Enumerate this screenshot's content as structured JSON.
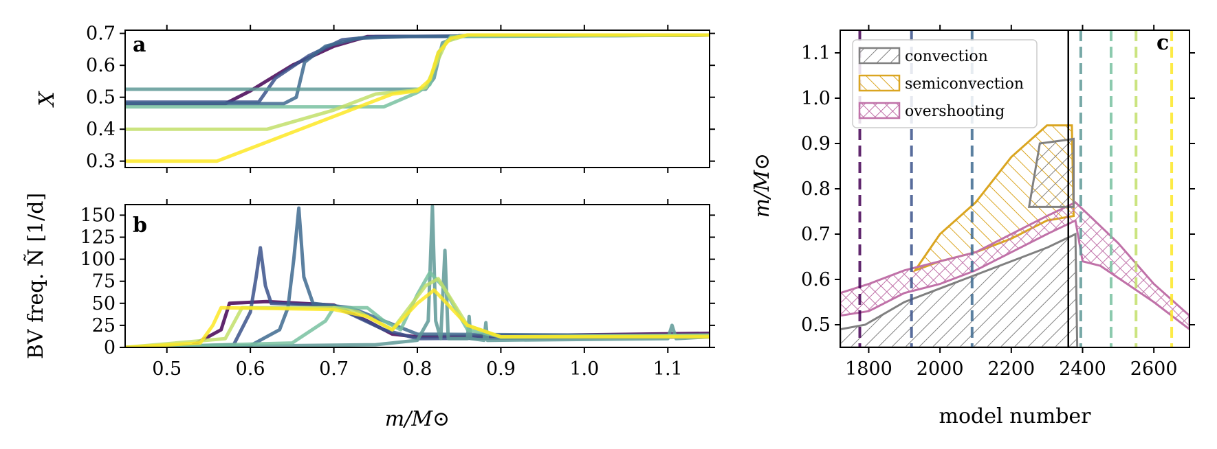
{
  "chart_data": [
    {
      "panel": "a",
      "type": "line",
      "ylabel": "X",
      "xlim": [
        0.45,
        1.15
      ],
      "ylim": [
        0.28,
        0.71
      ],
      "yticks": [
        "0.7",
        "0.6",
        "0.5",
        "0.4",
        "0.3"
      ],
      "series": [
        {
          "color": "#440154",
          "points": [
            [
              0.45,
              0.48
            ],
            [
              0.57,
              0.48
            ],
            [
              0.6,
              0.52
            ],
            [
              0.65,
              0.6
            ],
            [
              0.7,
              0.66
            ],
            [
              0.74,
              0.69
            ],
            [
              1.15,
              0.695
            ]
          ]
        },
        {
          "color": "#3b528b",
          "points": [
            [
              0.45,
              0.485
            ],
            [
              0.61,
              0.485
            ],
            [
              0.63,
              0.56
            ],
            [
              0.67,
              0.63
            ],
            [
              0.71,
              0.68
            ],
            [
              0.75,
              0.69
            ],
            [
              1.15,
              0.695
            ]
          ]
        },
        {
          "color": "#3e6a8f",
          "points": [
            [
              0.45,
              0.48
            ],
            [
              0.64,
              0.48
            ],
            [
              0.655,
              0.5
            ],
            [
              0.665,
              0.61
            ],
            [
              0.69,
              0.66
            ],
            [
              0.73,
              0.685
            ],
            [
              0.79,
              0.69
            ],
            [
              1.15,
              0.695
            ]
          ]
        },
        {
          "color": "#5e9996",
          "points": [
            [
              0.45,
              0.525
            ],
            [
              0.81,
              0.525
            ],
            [
              0.82,
              0.56
            ],
            [
              0.83,
              0.67
            ],
            [
              0.85,
              0.693
            ],
            [
              1.15,
              0.695
            ]
          ]
        },
        {
          "color": "#78c1a0",
          "points": [
            [
              0.45,
              0.47
            ],
            [
              0.76,
              0.47
            ],
            [
              0.8,
              0.515
            ],
            [
              0.815,
              0.54
            ],
            [
              0.825,
              0.64
            ],
            [
              0.84,
              0.69
            ],
            [
              1.15,
              0.695
            ]
          ]
        },
        {
          "color": "#c2df6a",
          "points": [
            [
              0.45,
              0.4
            ],
            [
              0.62,
              0.4
            ],
            [
              0.7,
              0.46
            ],
            [
              0.75,
              0.51
            ],
            [
              0.79,
              0.52
            ],
            [
              0.81,
              0.53
            ],
            [
              0.82,
              0.59
            ],
            [
              0.835,
              0.675
            ],
            [
              0.86,
              0.695
            ],
            [
              1.15,
              0.695
            ]
          ]
        },
        {
          "color": "#fde725",
          "points": [
            [
              0.45,
              0.3
            ],
            [
              0.56,
              0.3
            ],
            [
              0.66,
              0.4
            ],
            [
              0.73,
              0.47
            ],
            [
              0.77,
              0.51
            ],
            [
              0.8,
              0.52
            ],
            [
              0.815,
              0.555
            ],
            [
              0.825,
              0.64
            ],
            [
              0.84,
              0.685
            ],
            [
              0.86,
              0.695
            ],
            [
              1.15,
              0.695
            ]
          ]
        }
      ]
    },
    {
      "panel": "b",
      "type": "line",
      "ylabel": "BV freq. Ñ [1/d]",
      "xlabel": "m/M⊙",
      "xlim": [
        0.45,
        1.15
      ],
      "ylim": [
        0,
        162
      ],
      "xticks": [
        "0.5",
        "0.6",
        "0.7",
        "0.8",
        "0.9",
        "1.0",
        "1.1"
      ],
      "yticks": [
        "150",
        "125",
        "100",
        "75",
        "50",
        "25",
        "0"
      ],
      "series": [
        {
          "color": "#440154",
          "points": [
            [
              0.45,
              0
            ],
            [
              0.53,
              2
            ],
            [
              0.565,
              20
            ],
            [
              0.575,
              50
            ],
            [
              0.62,
              52
            ],
            [
              0.7,
              48
            ],
            [
              0.74,
              30
            ],
            [
              0.77,
              15
            ],
            [
              0.8,
              12
            ],
            [
              1.15,
              16
            ]
          ]
        },
        {
          "color": "#3b528b",
          "points": [
            [
              0.45,
              0
            ],
            [
              0.58,
              3
            ],
            [
              0.6,
              40
            ],
            [
              0.607,
              80
            ],
            [
              0.612,
              113
            ],
            [
              0.618,
              70
            ],
            [
              0.625,
              50
            ],
            [
              0.7,
              47
            ],
            [
              0.76,
              20
            ],
            [
              0.8,
              10
            ],
            [
              1.15,
              12
            ]
          ]
        },
        {
          "color": "#3e6a8f",
          "points": [
            [
              0.45,
              0
            ],
            [
              0.6,
              2
            ],
            [
              0.635,
              20
            ],
            [
              0.645,
              45
            ],
            [
              0.652,
              100
            ],
            [
              0.658,
              158
            ],
            [
              0.664,
              80
            ],
            [
              0.675,
              50
            ],
            [
              0.72,
              45
            ],
            [
              0.76,
              30
            ],
            [
              0.8,
              15
            ],
            [
              1.15,
              13
            ]
          ]
        },
        {
          "color": "#5e9996",
          "points": [
            [
              0.45,
              0
            ],
            [
              0.75,
              3
            ],
            [
              0.8,
              8
            ],
            [
              0.813,
              30
            ],
            [
              0.818,
              160
            ],
            [
              0.822,
              30
            ],
            [
              0.828,
              10
            ],
            [
              0.833,
              110
            ],
            [
              0.837,
              10
            ],
            [
              0.86,
              10
            ],
            [
              0.862,
              35
            ],
            [
              0.864,
              10
            ],
            [
              0.88,
              8
            ],
            [
              0.882,
              28
            ],
            [
              0.884,
              8
            ],
            [
              1.1,
              10
            ],
            [
              1.105,
              25
            ],
            [
              1.11,
              10
            ],
            [
              1.15,
              12
            ]
          ]
        },
        {
          "color": "#78c1a0",
          "points": [
            [
              0.45,
              0
            ],
            [
              0.65,
              5
            ],
            [
              0.69,
              30
            ],
            [
              0.7,
              45
            ],
            [
              0.74,
              45
            ],
            [
              0.76,
              30
            ],
            [
              0.78,
              20
            ],
            [
              0.8,
              60
            ],
            [
              0.815,
              85
            ],
            [
              0.83,
              70
            ],
            [
              0.86,
              20
            ],
            [
              0.9,
              12
            ],
            [
              1.15,
              14
            ]
          ]
        },
        {
          "color": "#c2df6a",
          "points": [
            [
              0.45,
              0
            ],
            [
              0.57,
              10
            ],
            [
              0.59,
              45
            ],
            [
              0.7,
              45
            ],
            [
              0.73,
              40
            ],
            [
              0.77,
              20
            ],
            [
              0.81,
              70
            ],
            [
              0.825,
              78
            ],
            [
              0.86,
              25
            ],
            [
              0.9,
              12
            ],
            [
              1.15,
              13
            ]
          ]
        },
        {
          "color": "#fde725",
          "points": [
            [
              0.45,
              0
            ],
            [
              0.54,
              5
            ],
            [
              0.555,
              25
            ],
            [
              0.565,
              45
            ],
            [
              0.7,
              43
            ],
            [
              0.74,
              35
            ],
            [
              0.77,
              20
            ],
            [
              0.8,
              50
            ],
            [
              0.82,
              65
            ],
            [
              0.86,
              25
            ],
            [
              0.9,
              12
            ],
            [
              1.15,
              12
            ]
          ]
        }
      ]
    },
    {
      "panel": "c",
      "type": "area",
      "xlabel": "model number",
      "ylabel": "m/M⊙",
      "xlim": [
        1720,
        2700
      ],
      "ylim": [
        0.45,
        1.15
      ],
      "xticks": [
        "1800",
        "2000",
        "2200",
        "2400",
        "2600"
      ],
      "yticks": [
        "1.1",
        "1.0",
        "0.9",
        "0.8",
        "0.7",
        "0.6",
        "0.5"
      ],
      "legend": {
        "placement": "top-left",
        "entries": [
          {
            "label": "convection",
            "color": "#808080"
          },
          {
            "label": "semiconvection",
            "color": "#daa520"
          },
          {
            "label": "overshooting",
            "color": "#c071a8"
          }
        ]
      },
      "regions": {
        "convection": [
          [
            1720,
            0.45
          ],
          [
            1720,
            0.49
          ],
          [
            1790,
            0.5
          ],
          [
            1900,
            0.55
          ],
          [
            2000,
            0.58
          ],
          [
            2100,
            0.61
          ],
          [
            2200,
            0.64
          ],
          [
            2300,
            0.67
          ],
          [
            2380,
            0.7
          ],
          [
            2385,
            0.45
          ]
        ],
        "convection_upper": [
          [
            2250,
            0.76
          ],
          [
            2280,
            0.9
          ],
          [
            2375,
            0.91
          ],
          [
            2375,
            0.76
          ]
        ],
        "semiconvection": [
          [
            1930,
            0.62
          ],
          [
            2000,
            0.7
          ],
          [
            2100,
            0.77
          ],
          [
            2200,
            0.87
          ],
          [
            2300,
            0.94
          ],
          [
            2370,
            0.94
          ],
          [
            2375,
            0.74
          ],
          [
            2300,
            0.73
          ],
          [
            2200,
            0.69
          ],
          [
            2100,
            0.66
          ],
          [
            2000,
            0.64
          ]
        ],
        "overshooting": [
          [
            1720,
            0.52
          ],
          [
            1800,
            0.53
          ],
          [
            1900,
            0.57
          ],
          [
            2000,
            0.59
          ],
          [
            2100,
            0.62
          ],
          [
            2200,
            0.66
          ],
          [
            2300,
            0.7
          ],
          [
            2380,
            0.73
          ],
          [
            2400,
            0.64
          ],
          [
            2450,
            0.63
          ],
          [
            2600,
            0.55
          ],
          [
            2700,
            0.49
          ],
          [
            2700,
            0.52
          ],
          [
            2600,
            0.59
          ],
          [
            2500,
            0.68
          ],
          [
            2420,
            0.74
          ],
          [
            2380,
            0.77
          ],
          [
            2300,
            0.74
          ],
          [
            2200,
            0.7
          ],
          [
            2100,
            0.66
          ],
          [
            2000,
            0.64
          ],
          [
            1900,
            0.62
          ],
          [
            1800,
            0.59
          ],
          [
            1720,
            0.57
          ]
        ]
      },
      "vlines": [
        {
          "x": 1775,
          "color": "#440154",
          "style": "dashed"
        },
        {
          "x": 1920,
          "color": "#3b528b",
          "style": "dashed"
        },
        {
          "x": 2090,
          "color": "#3e6a8f",
          "style": "dashed"
        },
        {
          "x": 2360,
          "color": "#000000",
          "style": "solid"
        },
        {
          "x": 2395,
          "color": "#5e9996",
          "style": "dashed"
        },
        {
          "x": 2480,
          "color": "#78c1a0",
          "style": "dashed"
        },
        {
          "x": 2550,
          "color": "#c2df6a",
          "style": "dashed"
        },
        {
          "x": 2650,
          "color": "#fde725",
          "style": "dashed"
        }
      ]
    }
  ],
  "labels": {
    "panel_a": "a",
    "panel_b": "b",
    "panel_c": "c",
    "ylabel_a": "X",
    "ylabel_b": "BV freq. Ñ [1/d]",
    "xlabel_ab": "m/M⊙",
    "ylabel_c": "m/M⊙",
    "xlabel_c": "model number"
  }
}
